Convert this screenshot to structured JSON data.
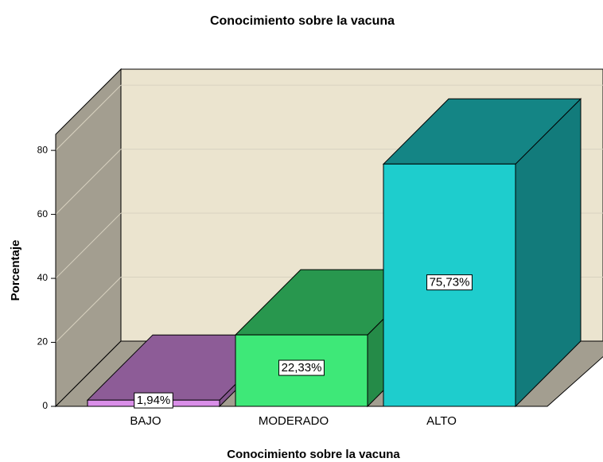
{
  "chart_data": {
    "type": "bar3d",
    "title": "Conocimiento sobre la vacuna",
    "x_label": "Conocimiento sobre la vacuna",
    "y_label": "Porcentaje",
    "categories": [
      "BAJO",
      "MODERADO",
      "ALTO"
    ],
    "values": [
      1.94,
      22.33,
      75.73
    ],
    "value_labels": [
      "1,94%",
      "22,33%",
      "75,73%"
    ],
    "colors": [
      "#d98ee8",
      "#3ee878",
      "#1ecdcd"
    ],
    "ylim": [
      0,
      85
    ],
    "yticks": [
      0,
      20,
      40,
      60,
      80
    ],
    "grid": true
  }
}
